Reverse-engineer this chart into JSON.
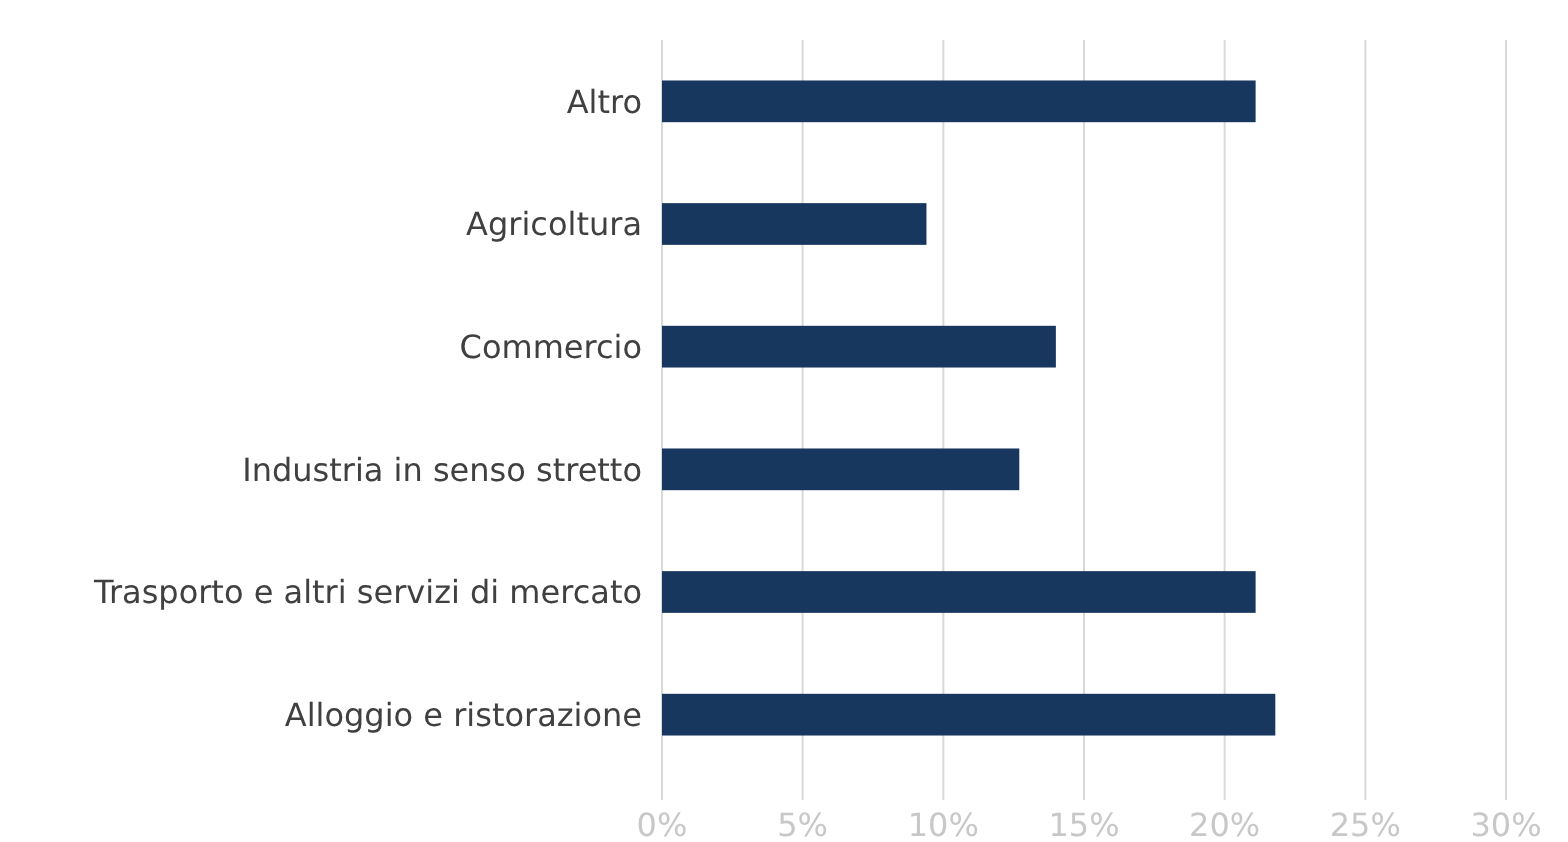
{
  "chart_data": {
    "type": "bar",
    "orientation": "horizontal",
    "categories": [
      "Altro",
      "Agricoltura",
      "Commercio",
      "Industria in senso stretto",
      "Trasporto e altri servizi di mercato",
      "Alloggio e ristorazione"
    ],
    "values": [
      21.1,
      9.4,
      14.0,
      12.7,
      21.1,
      21.8
    ],
    "color": "#17375e",
    "xlim": [
      0,
      30
    ],
    "xticks": [
      {
        "value": 0,
        "label": "0%"
      },
      {
        "value": 5,
        "label": "5%"
      },
      {
        "value": 10,
        "label": "10%"
      },
      {
        "value": 15,
        "label": "15%"
      },
      {
        "value": 20,
        "label": "20%"
      },
      {
        "value": 25,
        "label": "25%"
      },
      {
        "value": 30,
        "label": "30%"
      }
    ],
    "grid": "x"
  }
}
